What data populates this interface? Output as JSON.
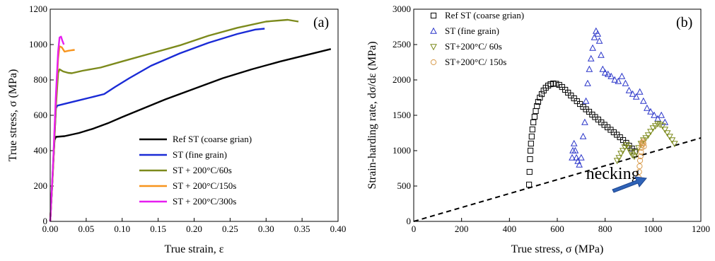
{
  "chart_data": [
    {
      "panel": "(a)",
      "type": "line",
      "title": "",
      "xlabel": "True strain, ε",
      "ylabel": "True stress, σ (MPa)",
      "xlim": [
        0.0,
        0.4
      ],
      "ylim": [
        0,
        1200
      ],
      "xticks": [
        "0.00",
        "0.05",
        "0.10",
        "0.15",
        "0.20",
        "0.25",
        "0.30",
        "0.35",
        "0.40"
      ],
      "yticks": [
        "0",
        "200",
        "400",
        "600",
        "800",
        "1000",
        "1200"
      ],
      "legend_position": "bottom-right",
      "grid": false,
      "series": [
        {
          "name": "Ref ST (coarse grian)",
          "color": "#000000",
          "x": [
            0.0,
            0.002,
            0.004,
            0.006,
            0.008,
            0.02,
            0.04,
            0.06,
            0.08,
            0.1,
            0.13,
            0.16,
            0.2,
            0.24,
            0.28,
            0.32,
            0.36,
            0.39
          ],
          "y": [
            0,
            150,
            320,
            460,
            478,
            482,
            500,
            525,
            555,
            590,
            640,
            690,
            750,
            810,
            860,
            905,
            945,
            975
          ]
        },
        {
          "name": "ST (fine grain)",
          "color": "#1a2bd6",
          "x": [
            0.0,
            0.003,
            0.006,
            0.008,
            0.01,
            0.02,
            0.04,
            0.06,
            0.075,
            0.09,
            0.11,
            0.14,
            0.18,
            0.22,
            0.26,
            0.285,
            0.298
          ],
          "y": [
            0,
            230,
            480,
            640,
            655,
            665,
            685,
            705,
            720,
            760,
            810,
            880,
            950,
            1010,
            1060,
            1085,
            1090
          ]
        },
        {
          "name": "ST + 200°C/60s",
          "color": "#7c8a1c",
          "x": [
            0.0,
            0.004,
            0.008,
            0.011,
            0.013,
            0.018,
            0.025,
            0.03,
            0.045,
            0.07,
            0.1,
            0.14,
            0.18,
            0.22,
            0.26,
            0.3,
            0.33,
            0.345
          ],
          "y": [
            0,
            300,
            650,
            840,
            860,
            848,
            840,
            838,
            852,
            870,
            905,
            950,
            995,
            1050,
            1095,
            1130,
            1140,
            1130
          ]
        },
        {
          "name": "ST + 200°C/150s",
          "color": "#f7941d",
          "x": [
            0.0,
            0.004,
            0.008,
            0.011,
            0.013,
            0.016,
            0.02,
            0.025,
            0.03,
            0.034
          ],
          "y": [
            0,
            320,
            700,
            920,
            990,
            985,
            960,
            965,
            968,
            970
          ]
        },
        {
          "name": "ST + 200°C/300s",
          "color": "#e61ef0",
          "x": [
            0.0,
            0.004,
            0.008,
            0.011,
            0.013,
            0.015,
            0.017,
            0.019
          ],
          "y": [
            0,
            330,
            720,
            960,
            1040,
            1045,
            1020,
            1000
          ]
        }
      ]
    },
    {
      "panel": "(b)",
      "type": "scatter",
      "title": "",
      "xlabel": "True stress, σ (MPa)",
      "ylabel": "Strain-harding rate, dσ/dε (MPa)",
      "xlim": [
        0,
        1200
      ],
      "ylim": [
        0,
        3000
      ],
      "xticks": [
        "0",
        "200",
        "400",
        "600",
        "800",
        "1000",
        "1200"
      ],
      "yticks": [
        "0",
        "500",
        "1000",
        "1500",
        "2000",
        "2500",
        "3000"
      ],
      "legend_position": "top-left",
      "grid": false,
      "annotations": [
        {
          "text": "necking",
          "x": 720,
          "y": 600
        }
      ],
      "necking_line": {
        "x": [
          0,
          1200
        ],
        "y": [
          0,
          1180
        ]
      },
      "series": [
        {
          "name": "Ref ST (coarse grian)",
          "marker": "square",
          "color": "#000000",
          "x": [
            482,
            484,
            486,
            488,
            490,
            493,
            496,
            500,
            505,
            510,
            515,
            520,
            527,
            535,
            543,
            552,
            562,
            572,
            583,
            595,
            608,
            620,
            633,
            645,
            657,
            670,
            682,
            695,
            708,
            720,
            733,
            746,
            758,
            771,
            784,
            797,
            810,
            823,
            836,
            849,
            862,
            875,
            888,
            900,
            912,
            924
          ],
          "y": [
            520,
            700,
            880,
            1000,
            1100,
            1200,
            1300,
            1400,
            1480,
            1560,
            1630,
            1690,
            1750,
            1800,
            1850,
            1890,
            1920,
            1940,
            1950,
            1945,
            1930,
            1900,
            1860,
            1820,
            1780,
            1740,
            1700,
            1660,
            1620,
            1585,
            1550,
            1510,
            1475,
            1440,
            1400,
            1365,
            1330,
            1295,
            1260,
            1225,
            1190,
            1150,
            1110,
            1070,
            1030,
            990
          ]
        },
        {
          "name": "ST (fine grain)",
          "marker": "triangle-up",
          "color": "#2a35c9",
          "x": [
            662,
            665,
            670,
            675,
            680,
            686,
            692,
            700,
            708,
            715,
            720,
            727,
            734,
            741,
            748,
            755,
            762,
            769,
            776,
            783,
            790,
            800,
            812,
            825,
            840,
            855,
            870,
            885,
            900,
            915,
            930,
            945,
            960,
            975,
            990,
            1005,
            1020,
            1035,
            1050
          ],
          "y": [
            900,
            1000,
            1100,
            1000,
            900,
            850,
            800,
            900,
            1200,
            1400,
            1700,
            1950,
            2150,
            2300,
            2450,
            2600,
            2690,
            2650,
            2550,
            2350,
            2150,
            2100,
            2080,
            2050,
            2000,
            1980,
            2050,
            1950,
            1850,
            1800,
            1760,
            1830,
            1700,
            1600,
            1550,
            1500,
            1450,
            1500,
            1400
          ]
        },
        {
          "name": "ST+200°C/ 60s",
          "marker": "triangle-down",
          "color": "#7c8a1c",
          "x": [
            850,
            858,
            866,
            874,
            882,
            890,
            898,
            906,
            914,
            922,
            930,
            940,
            950,
            960,
            970,
            980,
            990,
            1000,
            1010,
            1020,
            1030,
            1040,
            1050,
            1060,
            1070,
            1080,
            1090
          ],
          "y": [
            860,
            900,
            960,
            1000,
            1050,
            1080,
            1040,
            980,
            940,
            920,
            980,
            1040,
            1100,
            1150,
            1180,
            1220,
            1270,
            1320,
            1350,
            1380,
            1370,
            1350,
            1300,
            1250,
            1200,
            1150,
            1100
          ]
        },
        {
          "name": "ST+200°C/ 150s",
          "marker": "circle",
          "color": "#d89a4a",
          "x": [
            940,
            942,
            944,
            946,
            948,
            950,
            952,
            954,
            956,
            958,
            960,
            962
          ],
          "y": [
            620,
            700,
            780,
            860,
            920,
            980,
            1040,
            1080,
            1110,
            1130,
            1100,
            1060
          ]
        }
      ]
    }
  ],
  "panel_a": {
    "label": "(a)"
  },
  "panel_b": {
    "label": "(b)",
    "annotation": "necking"
  }
}
